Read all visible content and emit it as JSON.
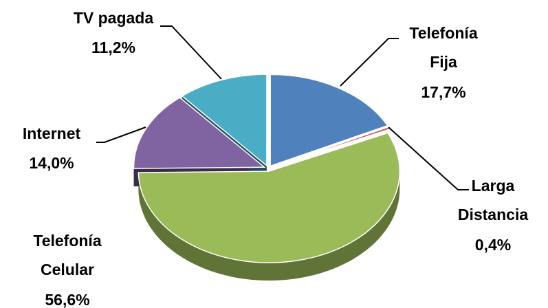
{
  "chart_data": {
    "type": "pie",
    "categories": [
      "Telefonía Fija",
      "Larga Distancia",
      "Telefonía Celular",
      "Internet",
      "TV pagada"
    ],
    "values": [
      17.7,
      0.4,
      56.6,
      14.0,
      11.2
    ],
    "value_labels": [
      "17,7%",
      "0,4%",
      "56,6%",
      "14,0%",
      "11,2%"
    ],
    "colors": [
      "#4f81bd",
      "#c0504d",
      "#9bbb59",
      "#8064a2",
      "#4bacc6"
    ]
  }
}
